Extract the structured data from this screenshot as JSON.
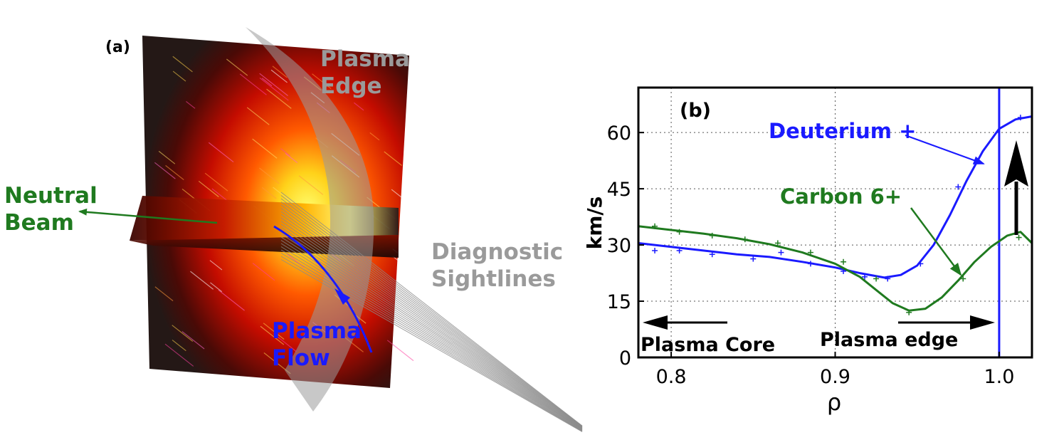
{
  "panel_a": {
    "panel_label": "(a)",
    "edge_label_line1": "Plasma",
    "edge_label_line2": "Edge",
    "beam_label_line1": "Neutral",
    "beam_label_line2": "Beam",
    "sightlines_label_line1": "Diagnostic",
    "sightlines_label_line2": "Sightlines",
    "flow_label_line1": "Plasma",
    "flow_label_line2": "Flow",
    "colors": {
      "beam": "#1f7a1f",
      "flow": "#1a1aff",
      "edge_text": "#9a9a9a"
    }
  },
  "panel_b": {
    "panel_label": "(b)",
    "core_arrow_label": "Plasma Core",
    "edge_arrow_label": "Plasma edge"
  },
  "chart_data": {
    "type": "line",
    "title": "",
    "xlabel": "ρ",
    "ylabel": "km/s",
    "xlim": [
      0.78,
      1.02
    ],
    "ylim": [
      0,
      72
    ],
    "xticks": [
      0.8,
      0.9,
      1.0
    ],
    "xtick_labels": [
      "0.8",
      "0.9",
      "1.0"
    ],
    "yticks": [
      0,
      15,
      30,
      45,
      60
    ],
    "ytick_labels": [
      "0",
      "15",
      "30",
      "45",
      "60"
    ],
    "grid": true,
    "separatrix_x": 1.0,
    "series": [
      {
        "name": "Deuterium +",
        "color": "#1a1aff",
        "fit": [
          {
            "x": 0.78,
            "y": 30.5
          },
          {
            "x": 0.8,
            "y": 29.5
          },
          {
            "x": 0.82,
            "y": 28.5
          },
          {
            "x": 0.84,
            "y": 27.5
          },
          {
            "x": 0.86,
            "y": 26.8
          },
          {
            "x": 0.88,
            "y": 25.5
          },
          {
            "x": 0.9,
            "y": 24.0
          },
          {
            "x": 0.915,
            "y": 22.5
          },
          {
            "x": 0.93,
            "y": 21.3
          },
          {
            "x": 0.94,
            "y": 22.0
          },
          {
            "x": 0.95,
            "y": 24.5
          },
          {
            "x": 0.96,
            "y": 30.0
          },
          {
            "x": 0.97,
            "y": 38.0
          },
          {
            "x": 0.98,
            "y": 47.0
          },
          {
            "x": 0.99,
            "y": 55.0
          },
          {
            "x": 1.0,
            "y": 61.0
          },
          {
            "x": 1.01,
            "y": 63.5
          },
          {
            "x": 1.02,
            "y": 64.3
          }
        ],
        "points": [
          {
            "x": 0.79,
            "y": 28.5
          },
          {
            "x": 0.805,
            "y": 28.5
          },
          {
            "x": 0.825,
            "y": 27.5
          },
          {
            "x": 0.85,
            "y": 26.3
          },
          {
            "x": 0.867,
            "y": 28.0
          },
          {
            "x": 0.885,
            "y": 25.0
          },
          {
            "x": 0.905,
            "y": 23.0
          },
          {
            "x": 0.918,
            "y": 21.5
          },
          {
            "x": 0.932,
            "y": 21.0
          },
          {
            "x": 0.952,
            "y": 25.0
          },
          {
            "x": 0.975,
            "y": 45.5
          },
          {
            "x": 1.013,
            "y": 64.0
          }
        ]
      },
      {
        "name": "Carbon 6+",
        "color": "#1f7a1f",
        "fit": [
          {
            "x": 0.78,
            "y": 35.0
          },
          {
            "x": 0.8,
            "y": 34.0
          },
          {
            "x": 0.82,
            "y": 33.0
          },
          {
            "x": 0.84,
            "y": 31.8
          },
          {
            "x": 0.86,
            "y": 30.2
          },
          {
            "x": 0.88,
            "y": 28.0
          },
          {
            "x": 0.9,
            "y": 25.0
          },
          {
            "x": 0.915,
            "y": 21.5
          },
          {
            "x": 0.925,
            "y": 18.0
          },
          {
            "x": 0.935,
            "y": 14.5
          },
          {
            "x": 0.945,
            "y": 12.5
          },
          {
            "x": 0.955,
            "y": 13.0
          },
          {
            "x": 0.965,
            "y": 16.0
          },
          {
            "x": 0.975,
            "y": 20.5
          },
          {
            "x": 0.985,
            "y": 25.5
          },
          {
            "x": 0.995,
            "y": 29.5
          },
          {
            "x": 1.005,
            "y": 32.5
          },
          {
            "x": 1.013,
            "y": 33.5
          },
          {
            "x": 1.02,
            "y": 30.5
          }
        ],
        "points": [
          {
            "x": 0.79,
            "y": 35.0
          },
          {
            "x": 0.805,
            "y": 33.5
          },
          {
            "x": 0.825,
            "y": 32.5
          },
          {
            "x": 0.845,
            "y": 31.5
          },
          {
            "x": 0.865,
            "y": 30.5
          },
          {
            "x": 0.885,
            "y": 28.0
          },
          {
            "x": 0.905,
            "y": 25.5
          },
          {
            "x": 0.925,
            "y": 21.0
          },
          {
            "x": 0.945,
            "y": 12.0
          },
          {
            "x": 0.978,
            "y": 21.0
          },
          {
            "x": 1.012,
            "y": 32.0
          }
        ]
      }
    ]
  }
}
